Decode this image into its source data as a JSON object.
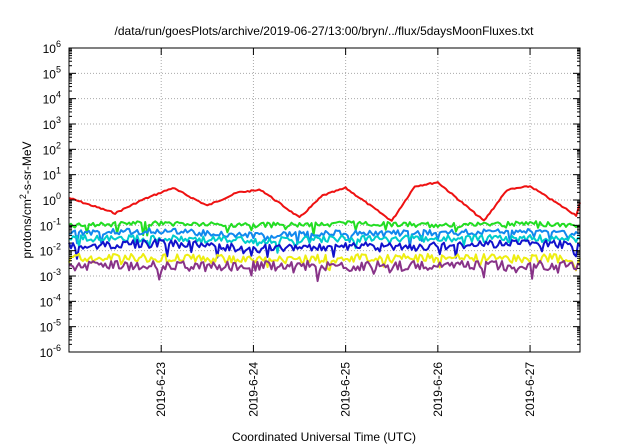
{
  "chart_data": {
    "type": "line",
    "title": "/data/run/goesPlots/archive/2019-06-27/13:00/bryn/../flux/5daysMoonFluxes.txt",
    "xlabel": "Coordinated Universal Time (UTC)",
    "ylabel": "protons/cm2-s-sr-MeV",
    "yscale": "log",
    "ylim": [
      1e-06,
      1000000.0
    ],
    "xlim": [
      "2019-06-22T00:00",
      "2019-06-27T13:00"
    ],
    "grid": true,
    "legend": "none",
    "y_ticks": [
      {
        "exp": "-6"
      },
      {
        "exp": "-5"
      },
      {
        "exp": "-4"
      },
      {
        "exp": "-3"
      },
      {
        "exp": "-2"
      },
      {
        "exp": "-1"
      },
      {
        "exp": "0"
      },
      {
        "exp": "1"
      },
      {
        "exp": "2"
      },
      {
        "exp": "3"
      },
      {
        "exp": "4"
      },
      {
        "exp": "5"
      },
      {
        "exp": "6"
      }
    ],
    "x_ticks": [
      {
        "label": "2019-6-23",
        "t": "2019-06-23T00:00"
      },
      {
        "label": "2019-6-24",
        "t": "2019-06-24T00:00"
      },
      {
        "label": "2019-6-25",
        "t": "2019-06-25T00:00"
      },
      {
        "label": "2019-6-26",
        "t": "2019-06-26T00:00"
      },
      {
        "label": "2019-6-27",
        "t": "2019-06-27T00:00"
      }
    ],
    "series": [
      {
        "color": "#ee1111",
        "x": [
          "2019-06-22T00:00",
          "2019-06-22T12:00",
          "2019-06-22T19:00",
          "2019-06-23T03:00",
          "2019-06-23T12:00",
          "2019-06-23T20:00",
          "2019-06-24T02:00",
          "2019-06-24T12:00",
          "2019-06-24T18:00",
          "2019-06-25T00:00",
          "2019-06-25T12:00",
          "2019-06-25T18:00",
          "2019-06-26T00:00",
          "2019-06-26T12:00",
          "2019-06-26T18:00",
          "2019-06-27T00:00",
          "2019-06-27T12:00",
          "2019-06-27T13:00"
        ],
        "values": [
          1.2,
          0.3,
          1.0,
          3.0,
          0.6,
          2.0,
          2.5,
          0.2,
          1.5,
          3.0,
          0.15,
          3.5,
          5.0,
          0.15,
          2.5,
          3.5,
          0.25,
          0.8
        ]
      },
      {
        "color": "#22dd22",
        "x": [
          "2019-06-22T00:00",
          "2019-06-23T00:00",
          "2019-06-24T00:00",
          "2019-06-25T00:00",
          "2019-06-26T00:00",
          "2019-06-27T00:00",
          "2019-06-27T13:00"
        ],
        "values": [
          0.1,
          0.12,
          0.1,
          0.12,
          0.1,
          0.12,
          0.1
        ]
      },
      {
        "color": "#1188ee",
        "x": [
          "2019-06-22T00:00",
          "2019-06-23T00:00",
          "2019-06-24T00:00",
          "2019-06-25T00:00",
          "2019-06-26T00:00",
          "2019-06-27T00:00",
          "2019-06-27T13:00"
        ],
        "values": [
          0.05,
          0.06,
          0.04,
          0.05,
          0.05,
          0.06,
          0.05
        ]
      },
      {
        "color": "#00cccc",
        "x": [
          "2019-06-22T00:00",
          "2019-06-23T00:00",
          "2019-06-24T00:00",
          "2019-06-25T00:00",
          "2019-06-26T00:00",
          "2019-06-27T00:00",
          "2019-06-27T13:00"
        ],
        "values": [
          0.03,
          0.03,
          0.025,
          0.03,
          0.03,
          0.03,
          0.03
        ]
      },
      {
        "color": "#1111cc",
        "x": [
          "2019-06-22T00:00",
          "2019-06-23T00:00",
          "2019-06-24T00:00",
          "2019-06-25T00:00",
          "2019-06-26T00:00",
          "2019-06-27T00:00",
          "2019-06-27T13:00"
        ],
        "values": [
          0.015,
          0.02,
          0.012,
          0.015,
          0.015,
          0.02,
          0.015
        ]
      },
      {
        "color": "#eeee11",
        "x": [
          "2019-06-22T00:00",
          "2019-06-23T00:00",
          "2019-06-24T00:00",
          "2019-06-25T00:00",
          "2019-06-26T00:00",
          "2019-06-27T00:00",
          "2019-06-27T13:00"
        ],
        "values": [
          0.005,
          0.005,
          0.0045,
          0.005,
          0.005,
          0.005,
          0.005
        ]
      },
      {
        "color": "#883388",
        "x": [
          "2019-06-22T00:00",
          "2019-06-23T00:00",
          "2019-06-24T00:00",
          "2019-06-25T00:00",
          "2019-06-26T00:00",
          "2019-06-27T00:00",
          "2019-06-27T13:00"
        ],
        "values": [
          0.0025,
          0.0025,
          0.0025,
          0.0025,
          0.0025,
          0.0025,
          0.0028
        ]
      }
    ]
  }
}
